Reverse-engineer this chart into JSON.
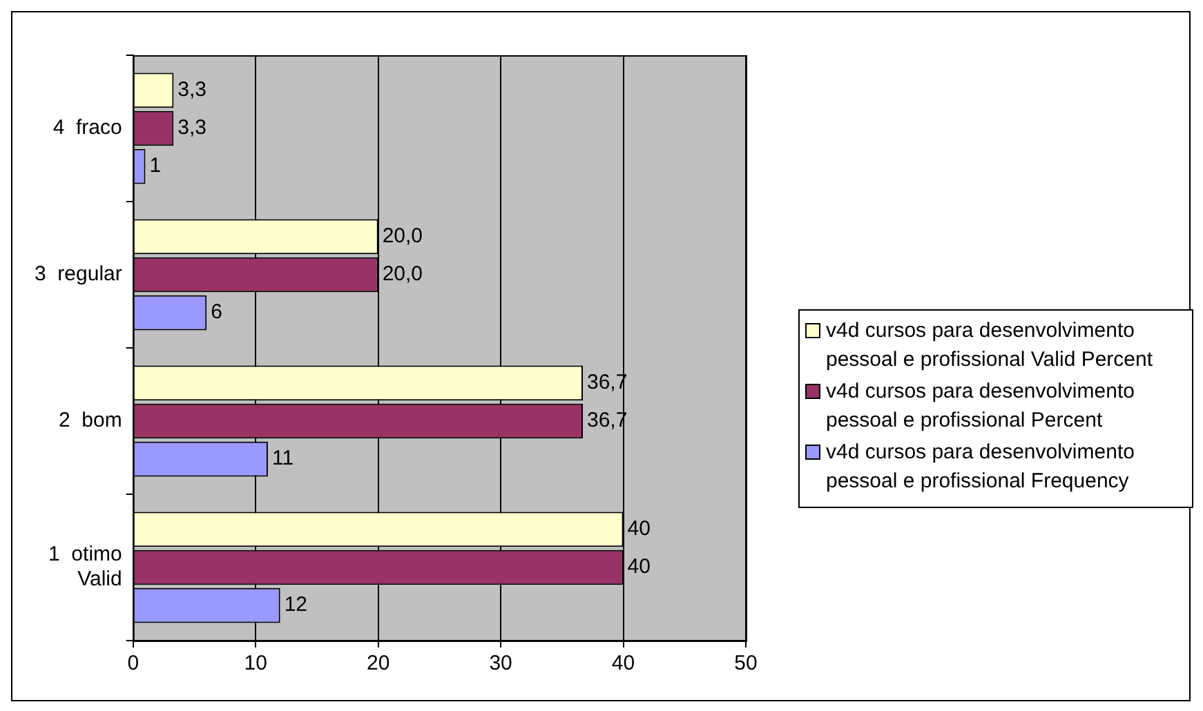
{
  "chart_data": {
    "type": "bar",
    "orientation": "horizontal",
    "categories": [
      "4  fraco",
      "3  regular",
      "2  bom",
      "1  otimo\nValid"
    ],
    "series": [
      {
        "name": "v4d  cursos para desenvolvimento pessoal e profissional Valid Percent",
        "color": "#ffffcc",
        "values": [
          3.3,
          20.0,
          36.7,
          40
        ],
        "value_labels": [
          "3,3",
          "20,0",
          "36,7",
          "40"
        ]
      },
      {
        "name": "v4d  cursos para desenvolvimento pessoal e profissional Percent",
        "color": "#993366",
        "values": [
          3.3,
          20.0,
          36.7,
          40
        ],
        "value_labels": [
          "3,3",
          "20,0",
          "36,7",
          "40"
        ]
      },
      {
        "name": "v4d  cursos para desenvolvimento pessoal e profissional Frequency",
        "color": "#9999ff",
        "values": [
          1,
          6,
          11,
          12
        ],
        "value_labels": [
          "1",
          "6",
          "11",
          "12"
        ]
      }
    ],
    "xlim": [
      0,
      50
    ],
    "xticks": [
      0,
      10,
      20,
      30,
      40,
      50
    ],
    "grid": "x",
    "legend": "right"
  }
}
